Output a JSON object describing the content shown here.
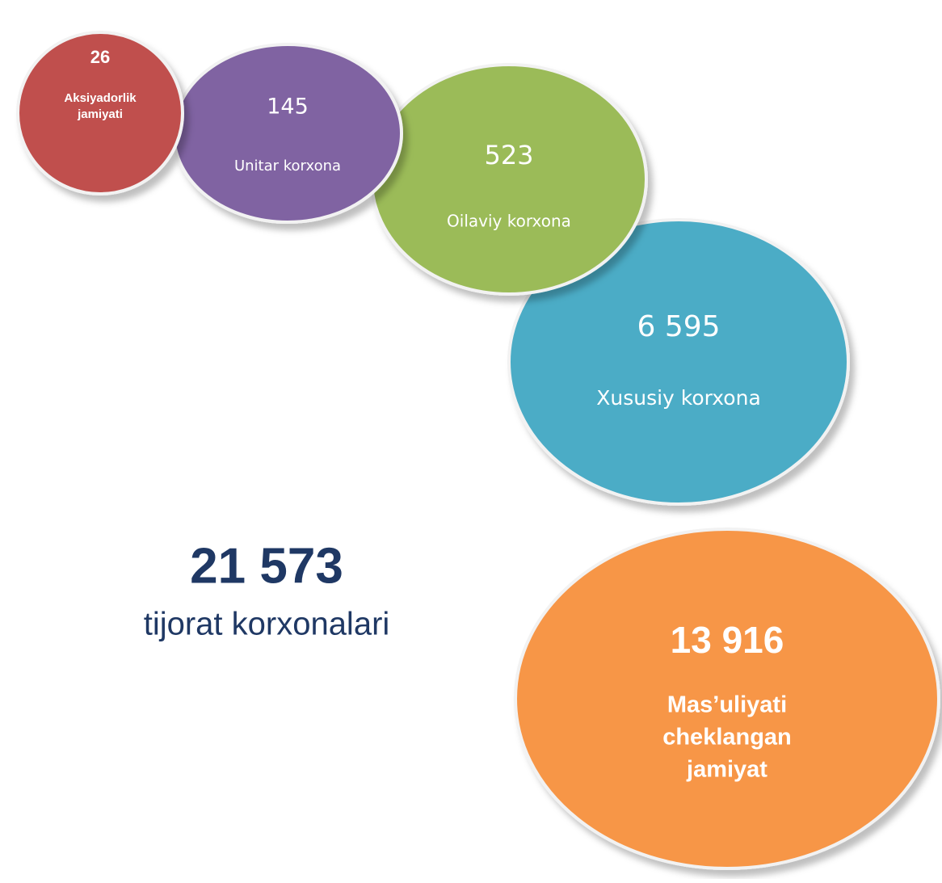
{
  "total": {
    "value": "21 573",
    "label": "tijorat korxonalari"
  },
  "bubbles": [
    {
      "value": "13 916",
      "label_lines": [
        "Mas’uliyati",
        "cheklangan",
        "jamiyat"
      ],
      "color": "#f79646"
    },
    {
      "value": "6 595",
      "label_lines": [
        "Xususiy korxona"
      ],
      "color": "#4bacc6"
    },
    {
      "value": "523",
      "label_lines": [
        "Oilaviy korxona"
      ],
      "color": "#9bbb59"
    },
    {
      "value": "145",
      "label_lines": [
        "Unitar korxona"
      ],
      "color": "#8064a2"
    },
    {
      "value": "26",
      "label_lines": [
        "Aksiyadorlik",
        "jamiyati"
      ],
      "color": "#c0504d"
    }
  ]
}
